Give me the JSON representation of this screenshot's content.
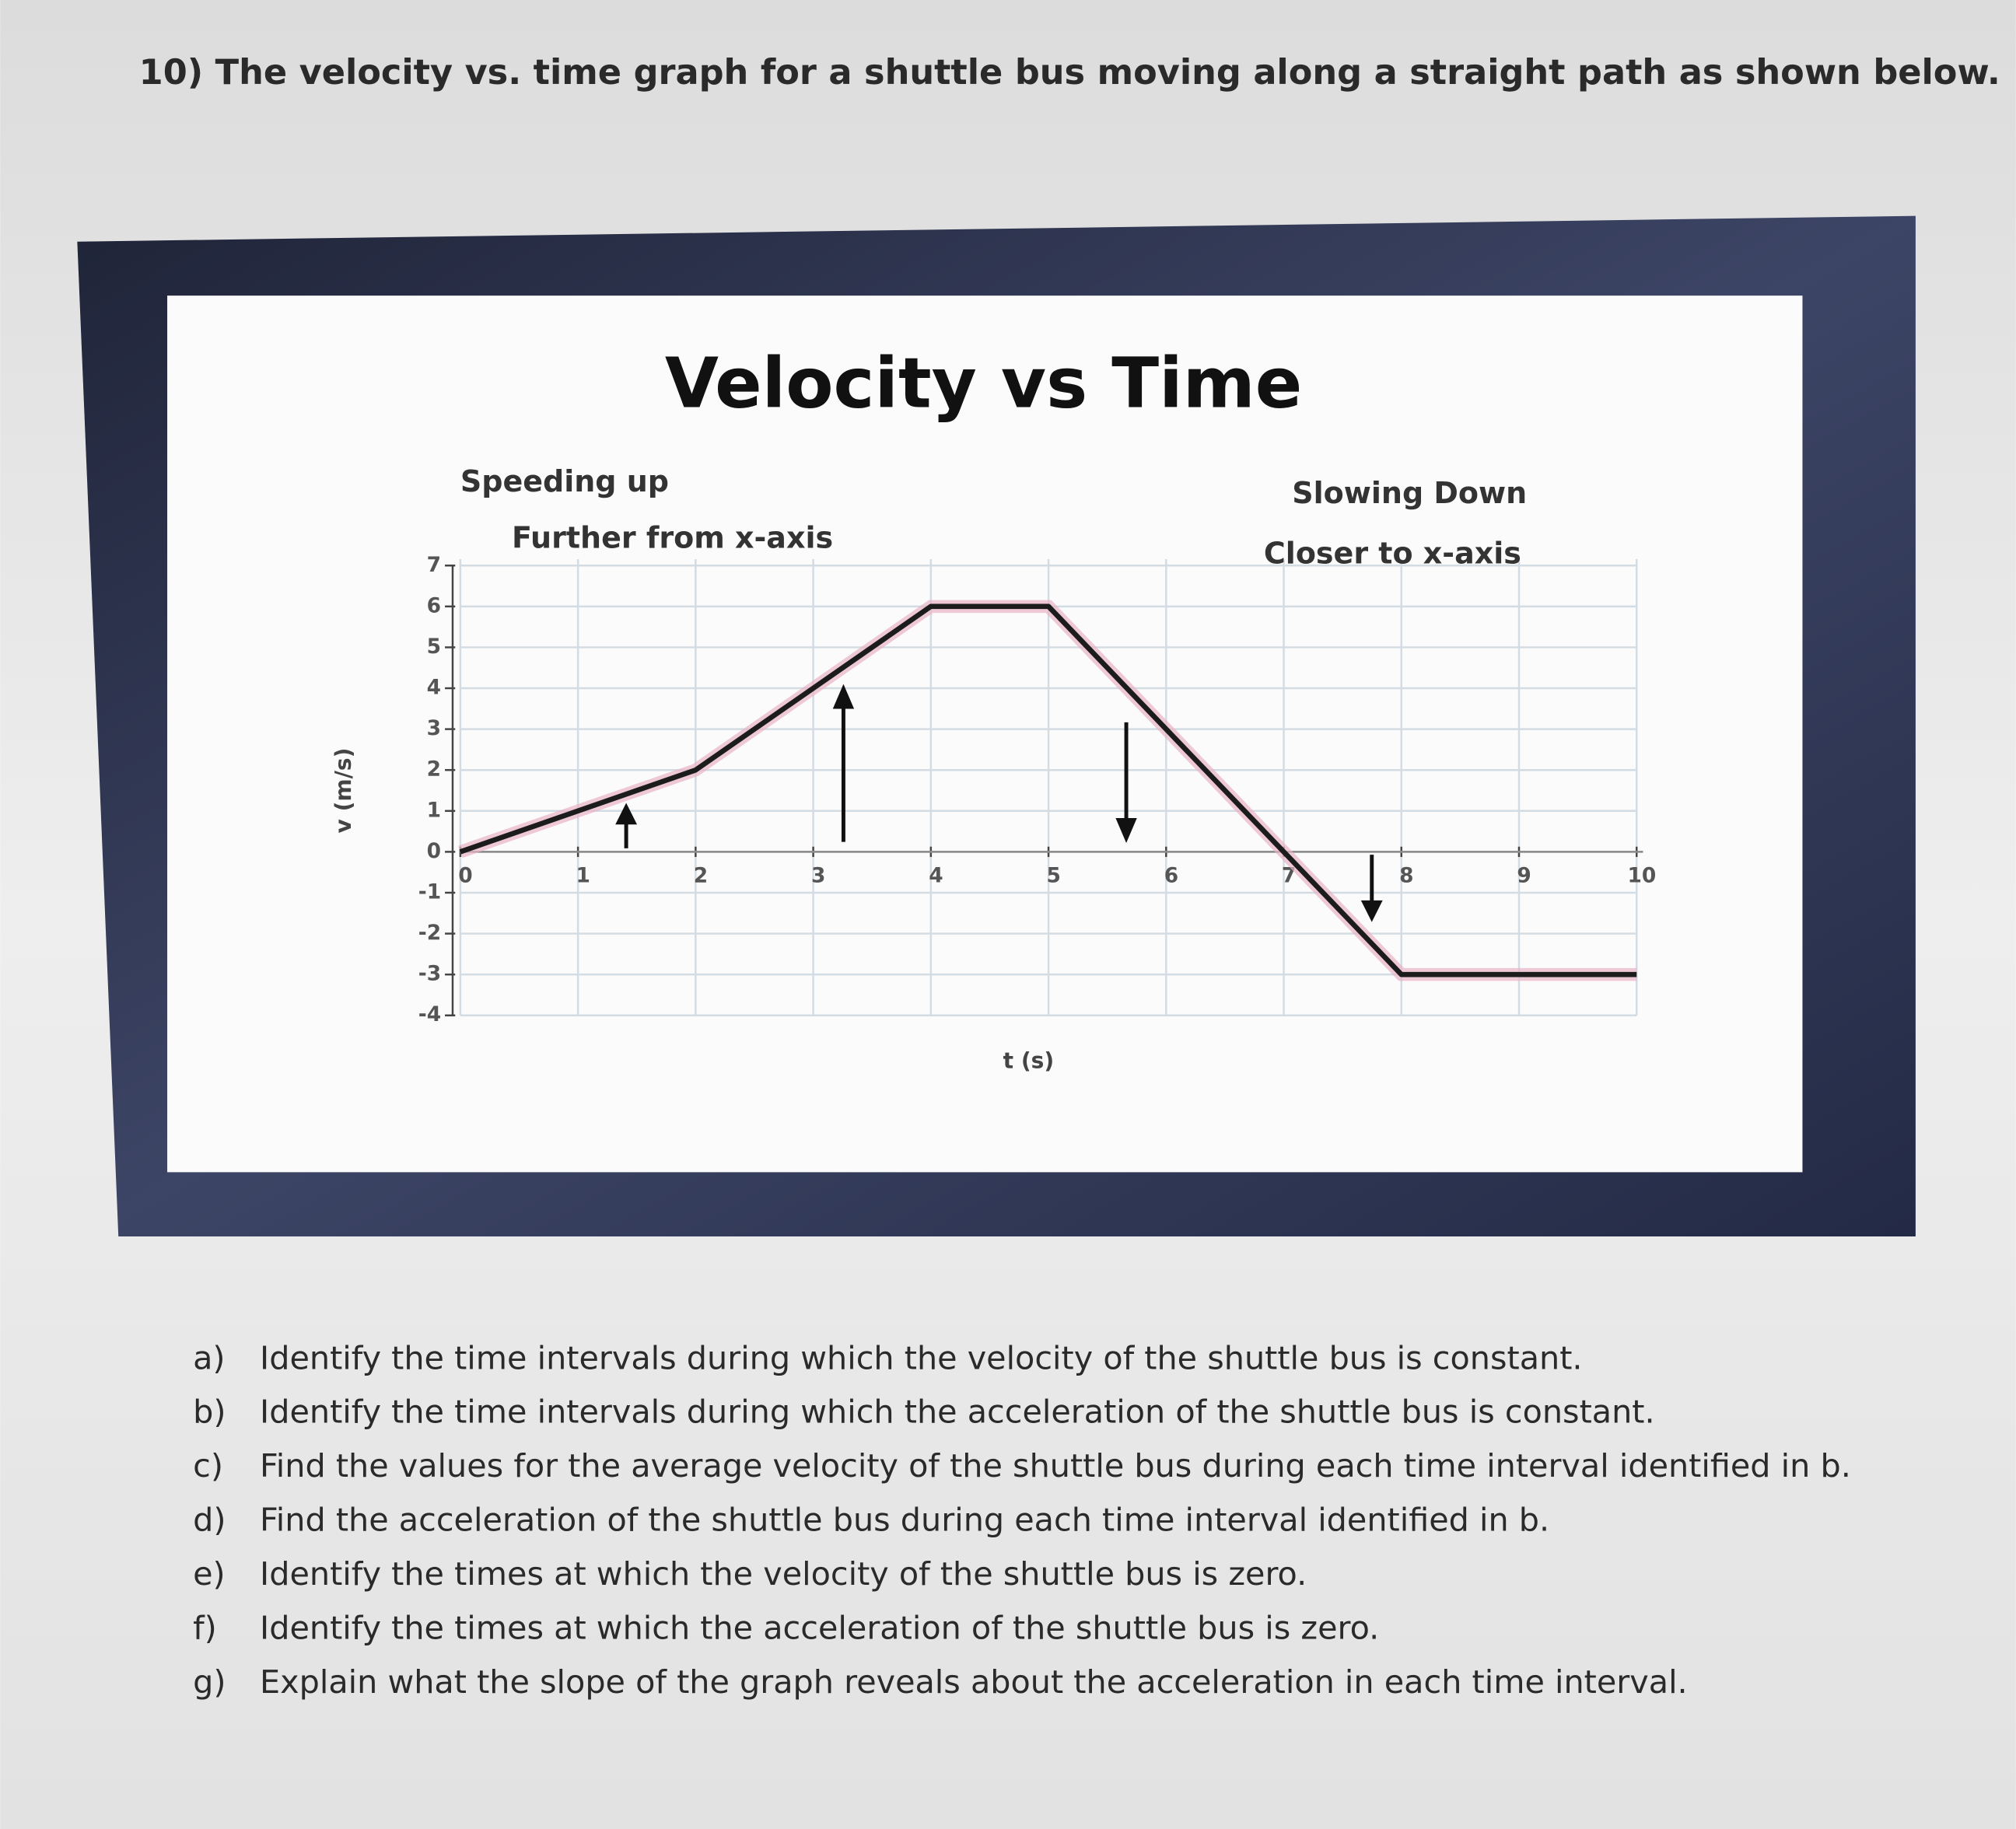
{
  "question": {
    "title": "10) The velocity vs. time graph for a shuttle bus moving along a straight path as shown below."
  },
  "chart_data": {
    "type": "line",
    "title": "Velocity vs Time",
    "annotations": [
      "Speeding up",
      "Further from x-axis",
      "Slowing Down",
      "Closer to x-axis"
    ],
    "xlabel": "t (s)",
    "ylabel": "v (m/s)",
    "x": [
      0,
      2,
      4,
      5,
      8,
      10
    ],
    "values": [
      0,
      2,
      6,
      6,
      -3,
      -3
    ],
    "color": "#1c1c1c",
    "xlim": [
      0,
      10
    ],
    "xticks": [
      0,
      1,
      2,
      3,
      4,
      5,
      6,
      7,
      8,
      9,
      10
    ],
    "ylim": [
      -4,
      7
    ],
    "yticks": [
      -4,
      -3,
      -2,
      -1,
      0,
      1,
      2,
      3,
      4,
      5,
      6,
      7
    ],
    "grid": true
  },
  "questions": [
    {
      "label": "a)",
      "text": "Identify the time intervals during which the velocity of the shuttle bus is constant."
    },
    {
      "label": "b)",
      "text": "Identify the time intervals during which the acceleration of the shuttle bus is constant."
    },
    {
      "label": "c)",
      "text": "Find the values for the average velocity of the shuttle bus during each time interval identified in b."
    },
    {
      "label": "d)",
      "text": "Find the acceleration of the shuttle bus during each time interval identified in b."
    },
    {
      "label": "e)",
      "text": "Identify the times at which the velocity of the shuttle bus is zero."
    },
    {
      "label": "f)",
      "text": "Identify the times at which the acceleration of the shuttle bus is zero."
    },
    {
      "label": "g)",
      "text": "Explain what the slope of the graph reveals about the acceleration in each time interval."
    }
  ]
}
